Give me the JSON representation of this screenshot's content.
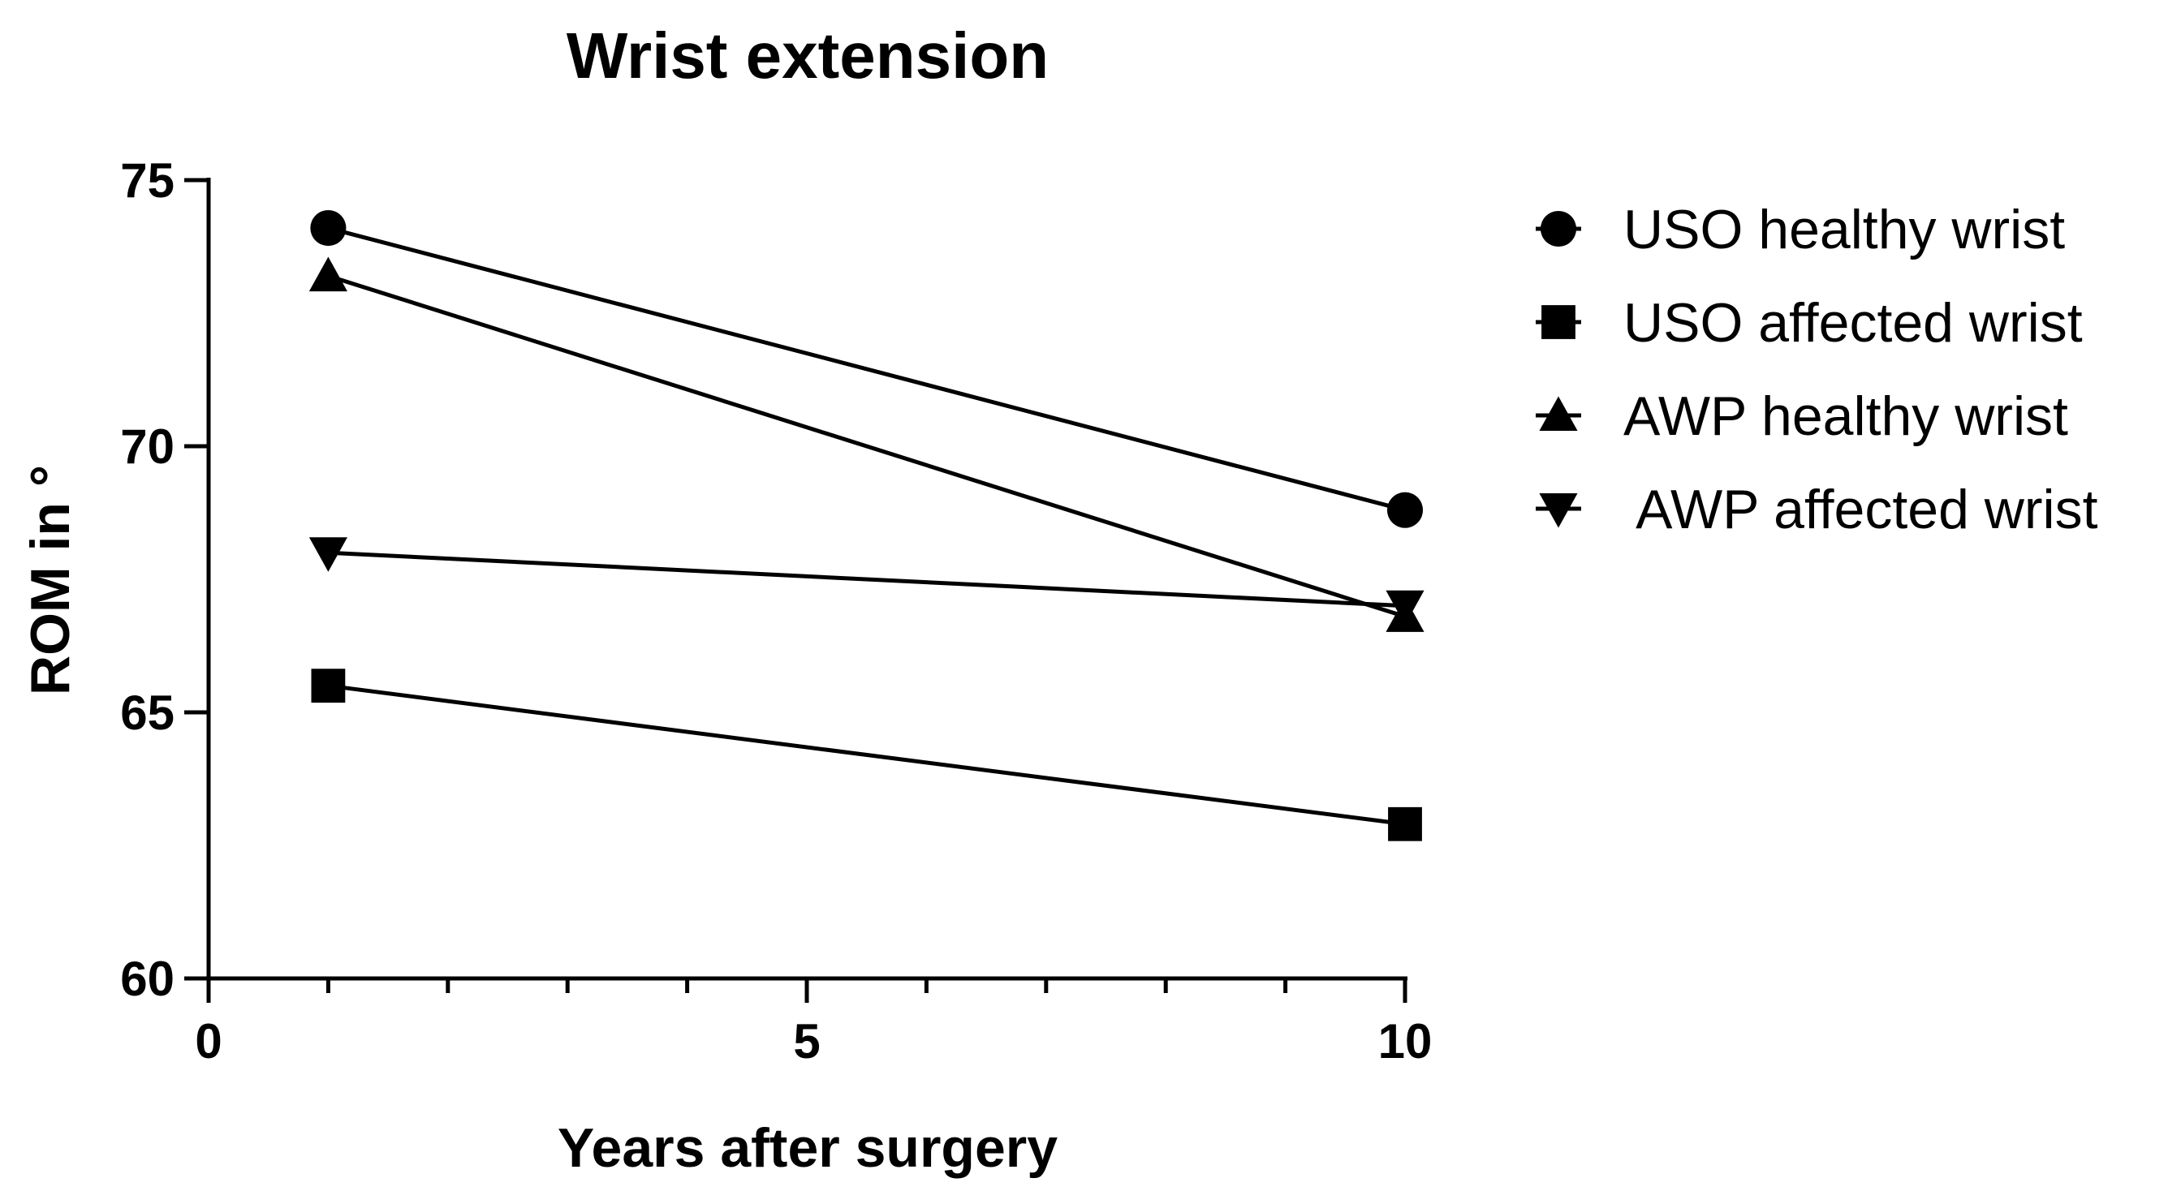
{
  "chart_data": {
    "type": "line",
    "title": "Wrist extension",
    "xlabel": "Years after surgery",
    "ylabel": "ROM in °",
    "xlim": [
      0,
      10
    ],
    "ylim": [
      60,
      75
    ],
    "x_ticks": [
      0,
      5,
      10
    ],
    "x_tick_labels": [
      "0",
      "5",
      "10"
    ],
    "y_ticks": [
      60,
      65,
      70,
      75
    ],
    "y_tick_labels": [
      "60",
      "65",
      "70",
      "75"
    ],
    "x_minor_step": 1,
    "grid": false,
    "legend_position": "right",
    "x": [
      1,
      10
    ],
    "series": [
      {
        "name": "USO healthy wrist",
        "marker": "circle",
        "values": [
          74.1,
          68.8
        ]
      },
      {
        "name": "USO affected wrist",
        "marker": "square",
        "values": [
          65.5,
          62.9
        ]
      },
      {
        "name": "AWP healthy wrist",
        "marker": "triangle-up",
        "values": [
          73.2,
          66.8
        ]
      },
      {
        "name": " AWP affected wrist",
        "marker": "triangle-down",
        "values": [
          68.0,
          67.0
        ]
      }
    ],
    "color": "#000000"
  }
}
